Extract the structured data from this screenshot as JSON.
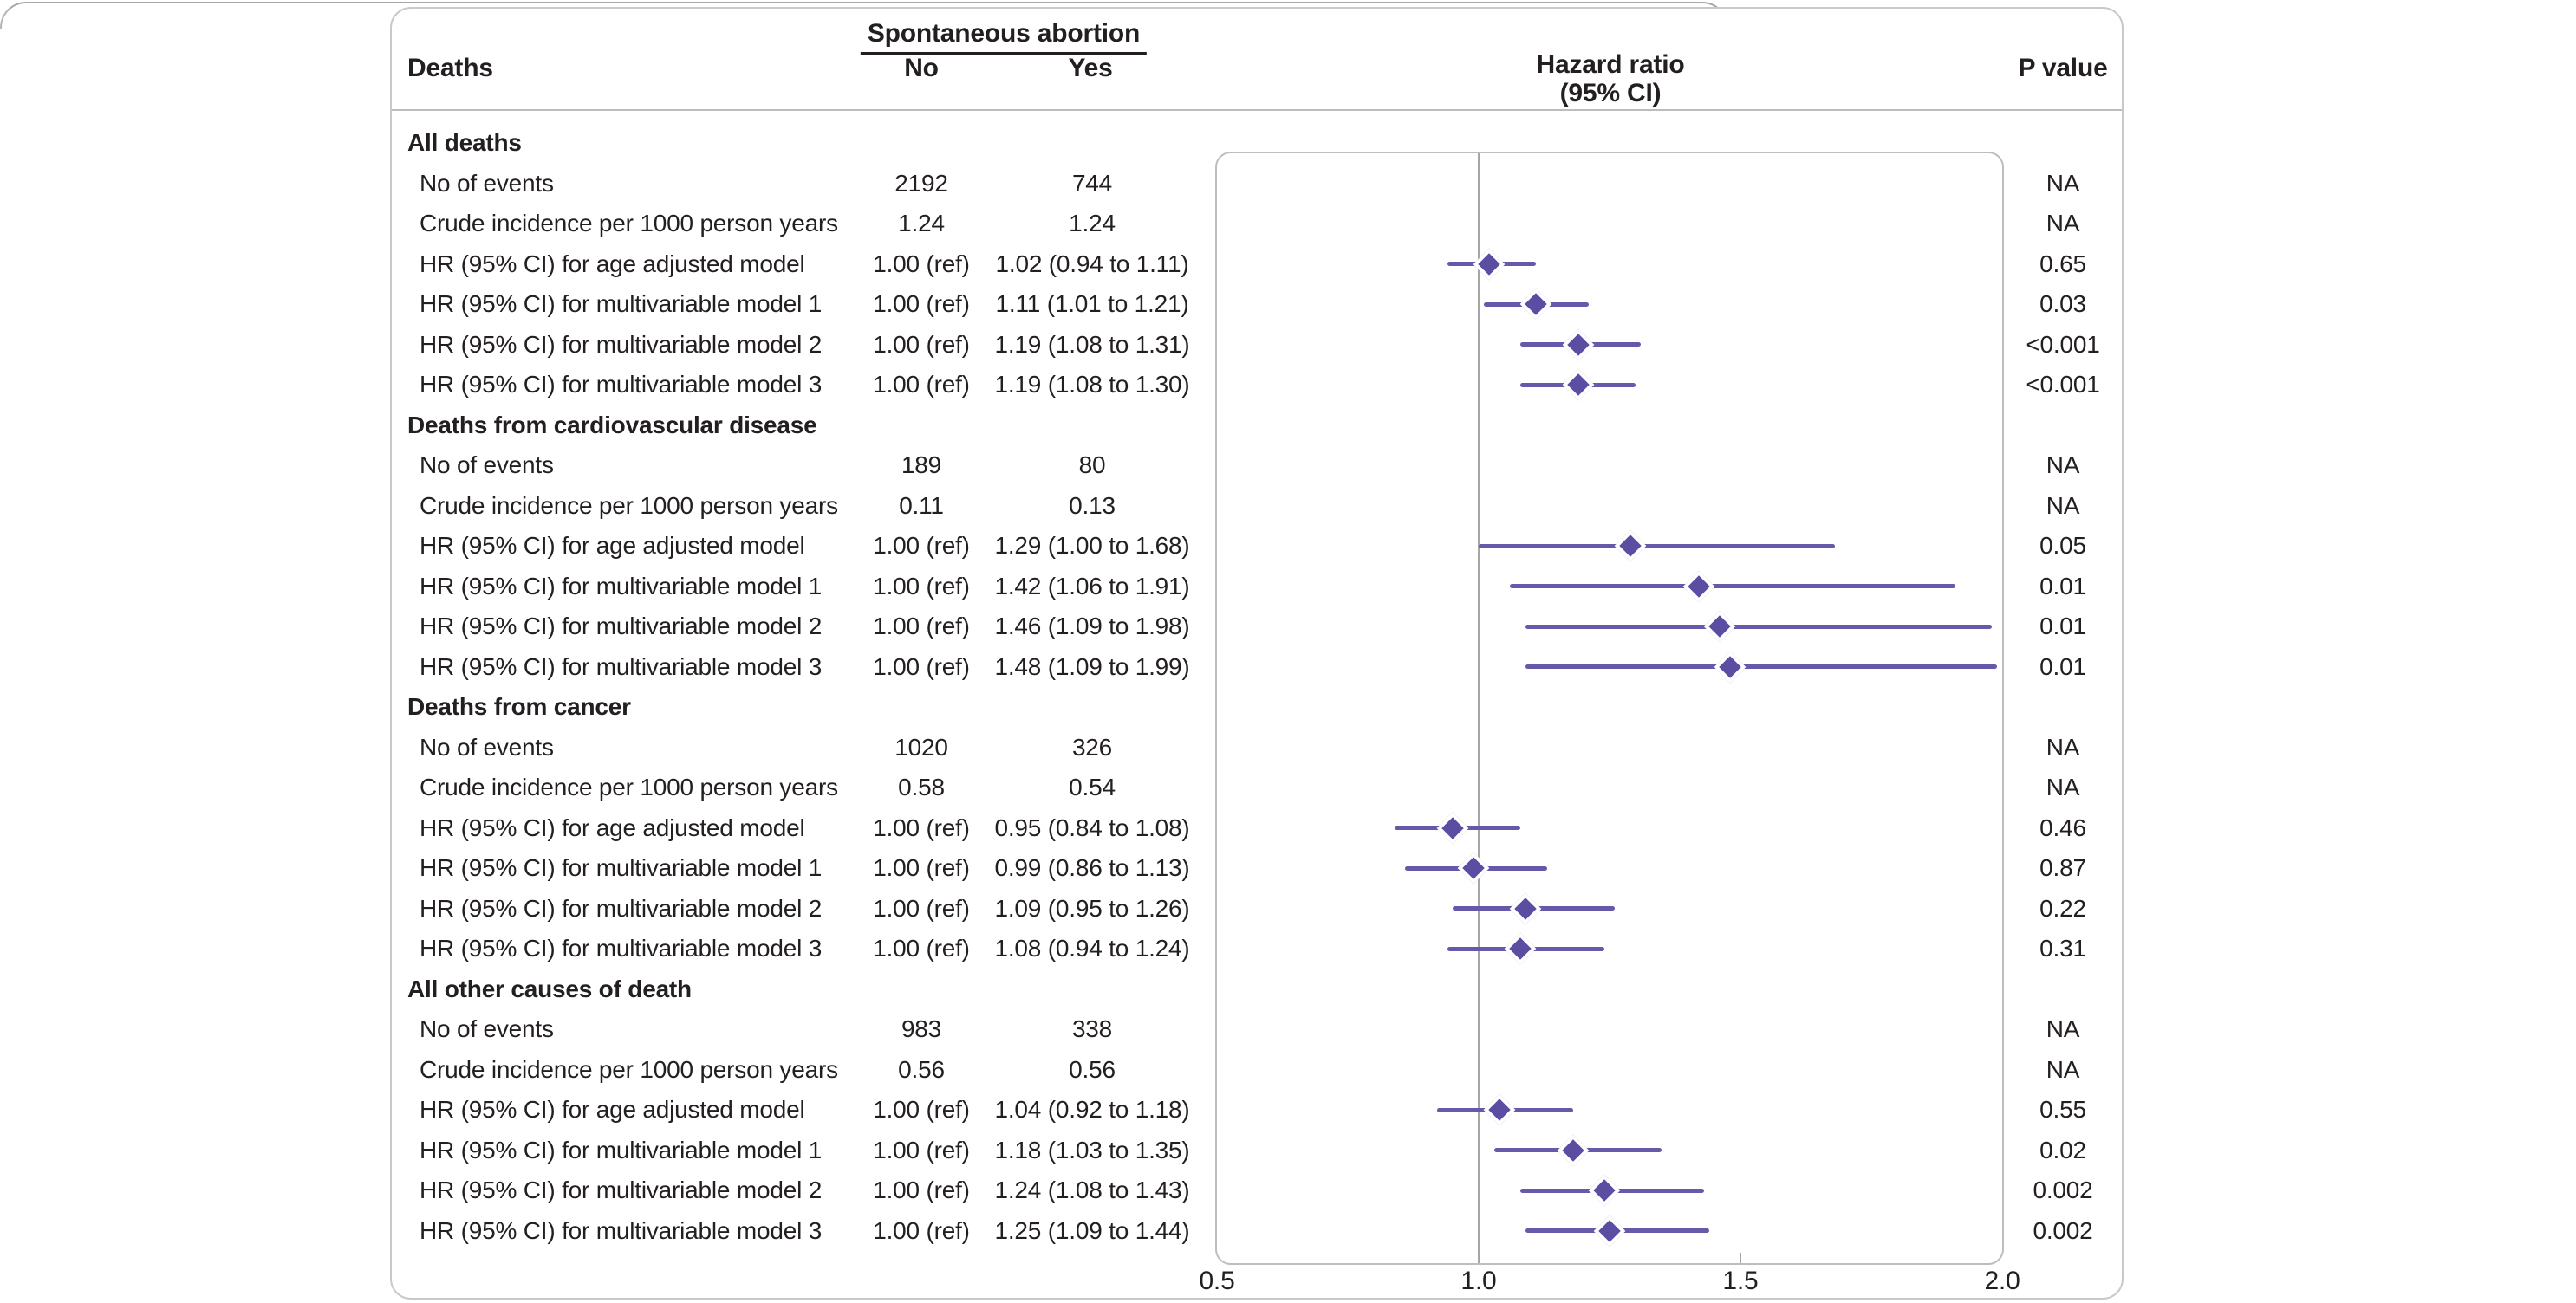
{
  "header": {
    "deaths": "Deaths",
    "span": "Spontaneous abortion",
    "no": "No",
    "yes": "Yes",
    "hr_line1": "Hazard ratio",
    "hr_line2": "(95% CI)",
    "p": "P value"
  },
  "sections": [
    {
      "title": "All deaths",
      "rows": [
        {
          "label": "No of events",
          "no": "2192",
          "yes": "744",
          "p": "NA"
        },
        {
          "label": "Crude incidence per 1000 person years",
          "no": "1.24",
          "yes": "1.24",
          "p": "NA"
        },
        {
          "label": "HR (95% CI) for age adjusted model",
          "no": "1.00 (ref)",
          "yes": "1.02 (0.94 to 1.11)",
          "p": "0.65",
          "hr": 1.02,
          "lo": 0.94,
          "hi": 1.11
        },
        {
          "label": "HR (95% CI) for multivariable model 1",
          "no": "1.00 (ref)",
          "yes": "1.11 (1.01 to 1.21)",
          "p": "0.03",
          "hr": 1.11,
          "lo": 1.01,
          "hi": 1.21
        },
        {
          "label": "HR (95% CI) for multivariable model 2",
          "no": "1.00 (ref)",
          "yes": "1.19 (1.08 to 1.31)",
          "p": "<0.001",
          "hr": 1.19,
          "lo": 1.08,
          "hi": 1.31
        },
        {
          "label": "HR (95% CI) for multivariable model 3",
          "no": "1.00 (ref)",
          "yes": "1.19 (1.08 to 1.30)",
          "p": "<0.001",
          "hr": 1.19,
          "lo": 1.08,
          "hi": 1.3
        }
      ]
    },
    {
      "title": "Deaths from cardiovascular disease",
      "rows": [
        {
          "label": "No of events",
          "no": "189",
          "yes": "80",
          "p": "NA"
        },
        {
          "label": "Crude incidence per 1000 person years",
          "no": "0.11",
          "yes": "0.13",
          "p": "NA"
        },
        {
          "label": "HR (95% CI) for age adjusted model",
          "no": "1.00 (ref)",
          "yes": "1.29 (1.00 to 1.68)",
          "p": "0.05",
          "hr": 1.29,
          "lo": 1.0,
          "hi": 1.68
        },
        {
          "label": "HR (95% CI) for multivariable model 1",
          "no": "1.00 (ref)",
          "yes": "1.42 (1.06 to 1.91)",
          "p": "0.01",
          "hr": 1.42,
          "lo": 1.06,
          "hi": 1.91
        },
        {
          "label": "HR (95% CI) for multivariable model 2",
          "no": "1.00 (ref)",
          "yes": "1.46 (1.09 to 1.98)",
          "p": "0.01",
          "hr": 1.46,
          "lo": 1.09,
          "hi": 1.98
        },
        {
          "label": "HR (95% CI) for multivariable model 3",
          "no": "1.00 (ref)",
          "yes": "1.48 (1.09 to 1.99)",
          "p": "0.01",
          "hr": 1.48,
          "lo": 1.09,
          "hi": 1.99
        }
      ]
    },
    {
      "title": "Deaths from cancer",
      "rows": [
        {
          "label": "No of events",
          "no": "1020",
          "yes": "326",
          "p": "NA"
        },
        {
          "label": "Crude incidence per 1000 person years",
          "no": "0.58",
          "yes": "0.54",
          "p": "NA"
        },
        {
          "label": "HR (95% CI) for age adjusted model",
          "no": "1.00 (ref)",
          "yes": "0.95 (0.84 to 1.08)",
          "p": "0.46",
          "hr": 0.95,
          "lo": 0.84,
          "hi": 1.08
        },
        {
          "label": "HR (95% CI) for multivariable model 1",
          "no": "1.00 (ref)",
          "yes": "0.99 (0.86 to 1.13)",
          "p": "0.87",
          "hr": 0.99,
          "lo": 0.86,
          "hi": 1.13
        },
        {
          "label": "HR (95% CI) for multivariable model 2",
          "no": "1.00 (ref)",
          "yes": "1.09 (0.95 to 1.26)",
          "p": "0.22",
          "hr": 1.09,
          "lo": 0.95,
          "hi": 1.26
        },
        {
          "label": "HR (95% CI) for multivariable model 3",
          "no": "1.00 (ref)",
          "yes": "1.08 (0.94 to 1.24)",
          "p": "0.31",
          "hr": 1.08,
          "lo": 0.94,
          "hi": 1.24
        }
      ]
    },
    {
      "title": "All other causes of death",
      "rows": [
        {
          "label": "No of events",
          "no": "983",
          "yes": "338",
          "p": "NA"
        },
        {
          "label": "Crude incidence per 1000 person years",
          "no": "0.56",
          "yes": "0.56",
          "p": "NA"
        },
        {
          "label": "HR (95% CI) for age adjusted model",
          "no": "1.00 (ref)",
          "yes": "1.04 (0.92 to 1.18)",
          "p": "0.55",
          "hr": 1.04,
          "lo": 0.92,
          "hi": 1.18
        },
        {
          "label": "HR (95% CI) for multivariable model 1",
          "no": "1.00 (ref)",
          "yes": "1.18 (1.03 to 1.35)",
          "p": "0.02",
          "hr": 1.18,
          "lo": 1.03,
          "hi": 1.35
        },
        {
          "label": "HR (95% CI) for multivariable model 2",
          "no": "1.00 (ref)",
          "yes": "1.24 (1.08 to 1.43)",
          "p": "0.002",
          "hr": 1.24,
          "lo": 1.08,
          "hi": 1.43
        },
        {
          "label": "HR (95% CI) for multivariable model 3",
          "no": "1.00 (ref)",
          "yes": "1.25 (1.09 to 1.44)",
          "p": "0.002",
          "hr": 1.25,
          "lo": 1.09,
          "hi": 1.44
        }
      ]
    }
  ],
  "axis": {
    "min": 0.5,
    "max": 2.0,
    "ref": 1.0,
    "ticks": [
      {
        "label": "0.5",
        "value": 0.5
      },
      {
        "label": "1.0",
        "value": 1.0
      },
      {
        "label": "1.5",
        "value": 1.5
      },
      {
        "label": "2.0",
        "value": 2.0
      }
    ],
    "inner_ticks": [
      1.0,
      1.5
    ]
  },
  "colors": {
    "text": "#231f20",
    "ci_line": "#6659a9",
    "diamond": "#5b4da1",
    "ref_line": "#a6a6a6",
    "panel_border": "#bdbdbd",
    "card_border": "#c9c9c9",
    "rule": "#bdbdbd"
  },
  "chart_data": {
    "type": "scatter",
    "title": "Hazard ratio (95% CI)",
    "xlabel": "Hazard ratio",
    "xlim": [
      0.5,
      2.0
    ],
    "x_ticks": [
      0.5,
      1.0,
      1.5,
      2.0
    ],
    "reference_line_x": 1.0,
    "marker": "diamond",
    "legend_position": "none",
    "grid": false,
    "groups": [
      {
        "name": "All deaths",
        "models": [
          "age adjusted model",
          "multivariable model 1",
          "multivariable model 2",
          "multivariable model 3"
        ],
        "hr": [
          1.02,
          1.11,
          1.19,
          1.19
        ],
        "ci_low": [
          0.94,
          1.01,
          1.08,
          1.08
        ],
        "ci_high": [
          1.11,
          1.21,
          1.31,
          1.3
        ],
        "p_values": [
          "0.65",
          "0.03",
          "<0.001",
          "<0.001"
        ]
      },
      {
        "name": "Deaths from cardiovascular disease",
        "models": [
          "age adjusted model",
          "multivariable model 1",
          "multivariable model 2",
          "multivariable model 3"
        ],
        "hr": [
          1.29,
          1.42,
          1.46,
          1.48
        ],
        "ci_low": [
          1.0,
          1.06,
          1.09,
          1.09
        ],
        "ci_high": [
          1.68,
          1.91,
          1.98,
          1.99
        ],
        "p_values": [
          "0.05",
          "0.01",
          "0.01",
          "0.01"
        ]
      },
      {
        "name": "Deaths from cancer",
        "models": [
          "age adjusted model",
          "multivariable model 1",
          "multivariable model 2",
          "multivariable model 3"
        ],
        "hr": [
          0.95,
          0.99,
          1.09,
          1.08
        ],
        "ci_low": [
          0.84,
          0.86,
          0.95,
          0.94
        ],
        "ci_high": [
          1.08,
          1.13,
          1.26,
          1.24
        ],
        "p_values": [
          "0.46",
          "0.87",
          "0.22",
          "0.31"
        ]
      },
      {
        "name": "All other causes of death",
        "models": [
          "age adjusted model",
          "multivariable model 1",
          "multivariable model 2",
          "multivariable model 3"
        ],
        "hr": [
          1.04,
          1.18,
          1.24,
          1.25
        ],
        "ci_low": [
          0.92,
          1.03,
          1.08,
          1.09
        ],
        "ci_high": [
          1.18,
          1.35,
          1.43,
          1.44
        ],
        "p_values": [
          "0.55",
          "0.02",
          "0.002",
          "0.002"
        ]
      }
    ]
  }
}
